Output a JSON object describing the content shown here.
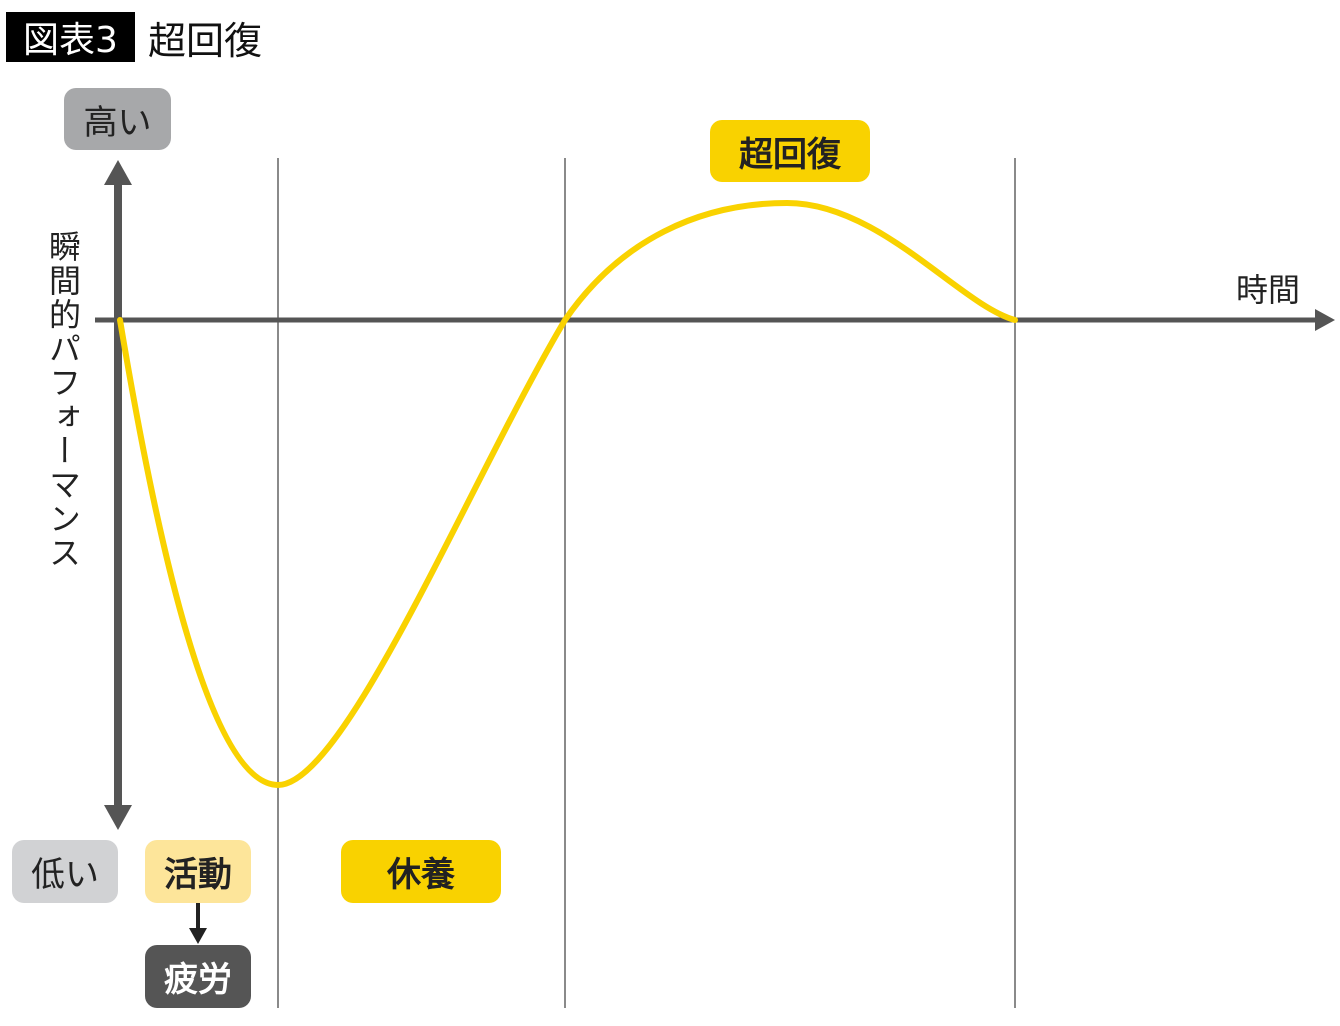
{
  "header": {
    "figure_number": "図表3",
    "title": "超回復"
  },
  "axes": {
    "y_label": "瞬間的パフォーマンス",
    "y_high": "高い",
    "y_low": "低い",
    "x_label": "時間"
  },
  "phases": {
    "activity": "活動",
    "fatigue": "疲労",
    "rest": "休養",
    "supercompensation": "超回復"
  },
  "colors": {
    "curve": "#f9d200",
    "axis": "#555555",
    "high_box": "#a7a8aa",
    "low_box": "#d1d2d4",
    "activity_box": "#fde59a",
    "fatigue_box": "#555555",
    "rest_box": "#f9d200",
    "supercompensation_box": "#f9d200"
  }
}
